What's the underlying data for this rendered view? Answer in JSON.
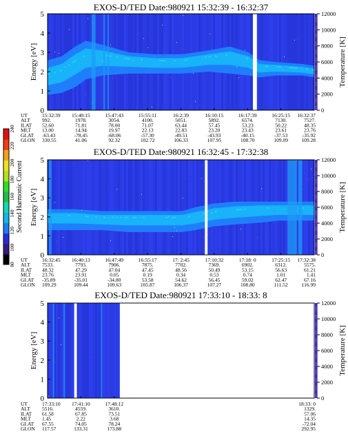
{
  "chart_data": [
    {
      "type": "heatmap",
      "title": "EXOS-D/TED   Date:980921   15:32:39 - 16:32:37",
      "ylabel": "Energy [eV]",
      "y2label": "Temperature [K]",
      "ylim": [
        0,
        5
      ],
      "y2lim": [
        0,
        12000
      ],
      "yticks": [
        "0",
        "1",
        "2",
        "3",
        "4",
        "5"
      ],
      "y2ticks": [
        "0",
        "2000",
        "4000",
        "6000",
        "8000",
        "10000",
        "12000"
      ],
      "gaps": [
        [
          0.77,
          0.785
        ]
      ],
      "band": [
        [
          0.0,
          0.8,
          1.8,
          2.6
        ],
        [
          0.05,
          0.9,
          2.0,
          2.8
        ],
        [
          0.1,
          1.2,
          2.5,
          3.3
        ],
        [
          0.14,
          1.6,
          2.8,
          3.6
        ],
        [
          0.2,
          1.8,
          2.8,
          3.4
        ],
        [
          0.3,
          1.9,
          2.6,
          3.0
        ],
        [
          0.4,
          1.9,
          2.5,
          2.9
        ],
        [
          0.5,
          1.9,
          2.5,
          2.9
        ],
        [
          0.6,
          2.0,
          2.7,
          3.1
        ],
        [
          0.68,
          1.9,
          2.8,
          3.3
        ],
        [
          0.75,
          1.8,
          2.6,
          3.0
        ],
        [
          0.79,
          1.7,
          2.2,
          2.6
        ],
        [
          0.85,
          1.8,
          2.2,
          2.5
        ],
        [
          0.95,
          1.8,
          2.1,
          2.4
        ],
        [
          1.0,
          1.7,
          2.0,
          2.3
        ]
      ],
      "table": {
        "rows": [
          {
            "label": "UT",
            "values": [
              "15:32:39",
              "15:40:15",
              "15:47:43",
              "15:55:11",
              "16:2:39",
              "16:10:15",
              "16:17:39",
              "16:25:15",
              "16:32:37"
            ]
          },
          {
            "label": "ALT",
            "values": [
              "992.",
              "1978.",
              "3054.",
              "4100.",
              "5051.",
              "5892.",
              "6574.",
              "7130.",
              "7527."
            ]
          },
          {
            "label": "ILAT",
            "values": [
              "52.60",
              "71.81",
              "78.00",
              "71.07",
              "63.44",
              "57.45",
              "53.23",
              "50.22",
              "48.35"
            ]
          },
          {
            "label": "MLT",
            "values": [
              "13.00",
              "14.94",
              "19.97",
              "22.13",
              "22.83",
              "23.20",
              "23.43",
              "23.61",
              "23.76"
            ]
          },
          {
            "label": "GLAT",
            "values": [
              "-63.43",
              "-78.45",
              "-68.06",
              "-57.30",
              "-49.51",
              "-43.93",
              "-40.15",
              "-37.53",
              "-35.92"
            ]
          },
          {
            "label": "GLON",
            "values": [
              "330.55",
              "41.06",
              "92.32",
              "102.72",
              "106.33",
              "107.95",
              "108.70",
              "109.09",
              "109.28"
            ]
          }
        ]
      }
    },
    {
      "type": "heatmap",
      "title": "EXOS-D/TED   Date:980921   16:32:45 - 17:32:38",
      "ylabel": "Energy [eV]",
      "y2label": "Temperature [K]",
      "ylim": [
        0,
        5
      ],
      "y2lim": [
        0,
        12000
      ],
      "yticks": [
        "0",
        "1",
        "2",
        "3",
        "4",
        "5"
      ],
      "y2ticks": [
        "0",
        "2000",
        "4000",
        "6000",
        "8000",
        "10000",
        "12000"
      ],
      "gaps": [
        [
          0.59,
          0.6
        ]
      ],
      "band": [
        [
          0.0,
          1.3,
          2.0,
          2.4
        ],
        [
          0.1,
          1.3,
          2.0,
          2.4
        ],
        [
          0.2,
          1.3,
          1.9,
          2.3
        ],
        [
          0.3,
          1.2,
          1.9,
          2.3
        ],
        [
          0.4,
          1.2,
          1.9,
          2.3
        ],
        [
          0.5,
          1.2,
          1.9,
          2.3
        ],
        [
          0.55,
          1.3,
          2.0,
          2.5
        ],
        [
          0.62,
          1.5,
          2.2,
          2.7
        ],
        [
          0.7,
          1.6,
          2.3,
          2.8
        ],
        [
          0.8,
          1.7,
          2.4,
          2.8
        ],
        [
          0.86,
          1.8,
          2.4,
          2.8
        ]
      ],
      "table": {
        "rows": [
          {
            "label": "UT",
            "values": [
              "16:32:45",
              "16:40:13",
              "16:47:49",
              "16:55:17",
              "17: 2:45",
              "17:10:32",
              "17:18: 0",
              "17:25:15",
              "17:32:38"
            ]
          },
          {
            "label": "ALT",
            "values": [
              "7533.",
              "7793.",
              "7906.",
              "7875.",
              "7702.",
              "7369.",
              "6902.",
              "6312.",
              "5575."
            ]
          },
          {
            "label": "ILAT",
            "values": [
              "48.32",
              "47.29",
              "47.04",
              "47.45",
              "48.56",
              "50.49",
              "53.15",
              "56.63",
              "61.21"
            ]
          },
          {
            "label": "MLT",
            "values": [
              "23.76",
              "23.91",
              "0.05",
              "0.19",
              "0.34",
              "0.53",
              "0.74",
              "1.01",
              "1.41"
            ]
          },
          {
            "label": "GLAT",
            "values": [
              "-35.89",
              "-35.01",
              "-34.80",
              "53.58",
              "54.62",
              "56.45",
              "59.02",
              "62.47",
              "67.16"
            ]
          },
          {
            "label": "GLON",
            "values": [
              "109.29",
              "109.44",
              "109.63",
              "105.87",
              "106.37",
              "107.27",
              "108.80",
              "111.52",
              "116.99"
            ]
          }
        ]
      }
    },
    {
      "type": "heatmap",
      "title": "EXOS-D/TED   Date:980921   17:33:10 - 18:33: 8",
      "ylabel": "Energy [eV]",
      "y2label": "Temperature [K]",
      "ylim": [
        0,
        5
      ],
      "y2lim": [
        0,
        12000
      ],
      "yticks": [
        "0",
        "1",
        "2",
        "3",
        "4",
        "5"
      ],
      "y2ticks": [
        "0",
        "2000",
        "4000",
        "6000",
        "8000",
        "10000",
        "12000"
      ],
      "data_extent": [
        0,
        0.27
      ],
      "gaps": [
        [
          0.1,
          0.11
        ]
      ],
      "band": [],
      "table": {
        "positions": [
          0,
          0.125,
          0.25,
          1.0
        ],
        "rows": [
          {
            "label": "UT",
            "values": [
              "17:33:10",
              "17:41:10",
              "17:48:12",
              "18:33: 0"
            ]
          },
          {
            "label": "ALT",
            "values": [
              "5516.",
              "4559.",
              "3610.",
              "1329."
            ]
          },
          {
            "label": "ILAT",
            "values": [
              "61.58",
              "67.85",
              "73.51",
              "57.06"
            ]
          },
          {
            "label": "MLT",
            "values": [
              "1.45",
              "2.22",
              "3.68",
              "14.35"
            ]
          },
          {
            "label": "GLAT",
            "values": [
              "67.55",
              "74.05",
              "78.24",
              "-72.04"
            ]
          },
          {
            "label": "GLON",
            "values": [
              "117.57",
              "133.31",
              "173.88",
              "292.95"
            ]
          }
        ]
      }
    }
  ],
  "colorbar": {
    "label": "Second Harmonic Current",
    "min": 80,
    "max": 240,
    "ticks": [
      "80",
      "100",
      "120",
      "140",
      "160",
      "180",
      "200",
      "220",
      "240"
    ]
  }
}
